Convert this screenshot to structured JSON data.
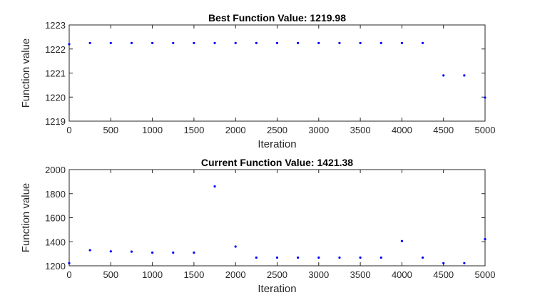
{
  "chart_data": [
    {
      "type": "scatter",
      "title": "Best Function Value: 1219.98",
      "xlabel": "Iteration",
      "ylabel": "Function value",
      "xlim": [
        0,
        5000
      ],
      "ylim": [
        1219,
        1223
      ],
      "xticks": [
        "0",
        "500",
        "1000",
        "1500",
        "2000",
        "2500",
        "3000",
        "3500",
        "4000",
        "4500",
        "5000"
      ],
      "yticks": [
        "1219",
        "1220",
        "1221",
        "1222",
        "1223"
      ],
      "marker_color": "#0000ff",
      "grid": false,
      "series": [
        {
          "x": [
            0,
            250,
            500,
            750,
            1000,
            1250,
            1500,
            1750,
            2000,
            2250,
            2500,
            2750,
            3000,
            3250,
            3500,
            3750,
            4000,
            4250,
            4500,
            4750,
            5000
          ],
          "y": [
            1222.2,
            1222.25,
            1222.25,
            1222.25,
            1222.25,
            1222.25,
            1222.25,
            1222.25,
            1222.25,
            1222.25,
            1222.25,
            1222.25,
            1222.25,
            1222.25,
            1222.25,
            1222.25,
            1222.25,
            1222.25,
            1220.9,
            1220.9,
            1219.98
          ]
        }
      ]
    },
    {
      "type": "scatter",
      "title": "Current Function Value: 1421.38",
      "xlabel": "Iteration",
      "ylabel": "Function value",
      "xlim": [
        0,
        5000
      ],
      "ylim": [
        1200,
        2000
      ],
      "xticks": [
        "0",
        "500",
        "1000",
        "1500",
        "2000",
        "2500",
        "3000",
        "3500",
        "4000",
        "4500",
        "5000"
      ],
      "yticks": [
        "1200",
        "1400",
        "1600",
        "1800",
        "2000"
      ],
      "marker_color": "#0000ff",
      "grid": false,
      "series": [
        {
          "x": [
            0,
            250,
            500,
            750,
            1000,
            1250,
            1500,
            1750,
            2000,
            2250,
            2500,
            2750,
            3000,
            3250,
            3500,
            3750,
            4000,
            4250,
            4500,
            4750,
            5000
          ],
          "y": [
            1222,
            1330,
            1320,
            1318,
            1310,
            1310,
            1310,
            1860,
            1360,
            1268,
            1268,
            1268,
            1268,
            1268,
            1268,
            1268,
            1406,
            1268,
            1222,
            1222,
            1421.38
          ]
        }
      ]
    }
  ]
}
